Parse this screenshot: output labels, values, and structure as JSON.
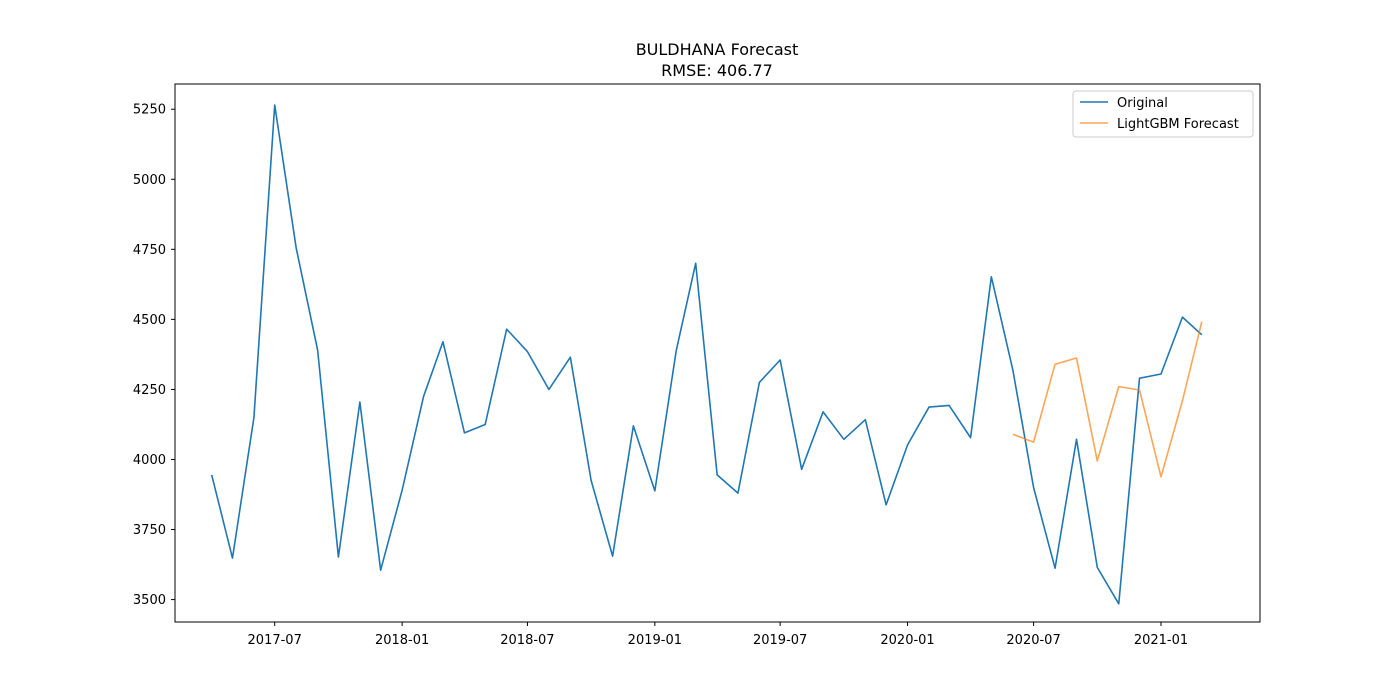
{
  "chart_data": {
    "type": "line",
    "title": "BULDHANA Forecast",
    "subtitle": "RMSE: 406.77",
    "xlabel": "",
    "ylabel": "",
    "grid": false,
    "legend_position": "top-right",
    "x_ticks": [
      "2017-07",
      "2018-01",
      "2018-07",
      "2019-01",
      "2019-07",
      "2020-01",
      "2020-07",
      "2021-01"
    ],
    "y_ticks": [
      3500,
      3750,
      4000,
      4250,
      4500,
      4750,
      5000,
      5250
    ],
    "xlim": [
      "2017-02-07",
      "2021-05-24"
    ],
    "ylim": [
      3420,
      5340
    ],
    "series": [
      {
        "name": "Original",
        "color": "#1f77b4",
        "x": [
          "2017-04-01",
          "2017-05-01",
          "2017-06-01",
          "2017-07-01",
          "2017-08-01",
          "2017-09-01",
          "2017-10-01",
          "2017-11-01",
          "2017-12-01",
          "2018-01-01",
          "2018-02-01",
          "2018-03-01",
          "2018-04-01",
          "2018-05-01",
          "2018-06-01",
          "2018-07-01",
          "2018-08-01",
          "2018-09-01",
          "2018-10-01",
          "2018-11-01",
          "2018-12-01",
          "2019-01-01",
          "2019-02-01",
          "2019-03-01",
          "2019-04-01",
          "2019-05-01",
          "2019-06-01",
          "2019-07-01",
          "2019-08-01",
          "2019-09-01",
          "2019-10-01",
          "2019-11-01",
          "2019-12-01",
          "2020-01-01",
          "2020-02-01",
          "2020-03-01",
          "2020-04-01",
          "2020-05-01",
          "2020-06-01",
          "2020-07-01",
          "2020-08-01",
          "2020-09-01",
          "2020-10-01",
          "2020-11-01",
          "2020-12-01",
          "2021-01-01",
          "2021-02-01",
          "2021-03-01"
        ],
        "values": [
          3945,
          3648,
          4150,
          5265,
          4755,
          4390,
          3652,
          4205,
          3605,
          3890,
          4225,
          4420,
          4095,
          4125,
          4465,
          4385,
          4250,
          4365,
          3925,
          3655,
          4120,
          3888,
          4390,
          4700,
          3945,
          3880,
          4275,
          4355,
          3965,
          4170,
          4072,
          4142,
          3838,
          4052,
          4187,
          4193,
          4078,
          4652,
          4320,
          3900,
          3612,
          4072,
          3615,
          3485,
          4290,
          4305,
          4508,
          4445
        ]
      },
      {
        "name": "LightGBM Forecast",
        "color": "#ff7f0e",
        "x": [
          "2020-06-01",
          "2020-07-01",
          "2020-08-01",
          "2020-09-01",
          "2020-10-01",
          "2020-11-01",
          "2020-12-01",
          "2021-01-01",
          "2021-02-01",
          "2021-03-01"
        ],
        "values": [
          4090,
          4062,
          4340,
          4362,
          3995,
          4260,
          4248,
          3938,
          4210,
          4492
        ]
      }
    ]
  }
}
